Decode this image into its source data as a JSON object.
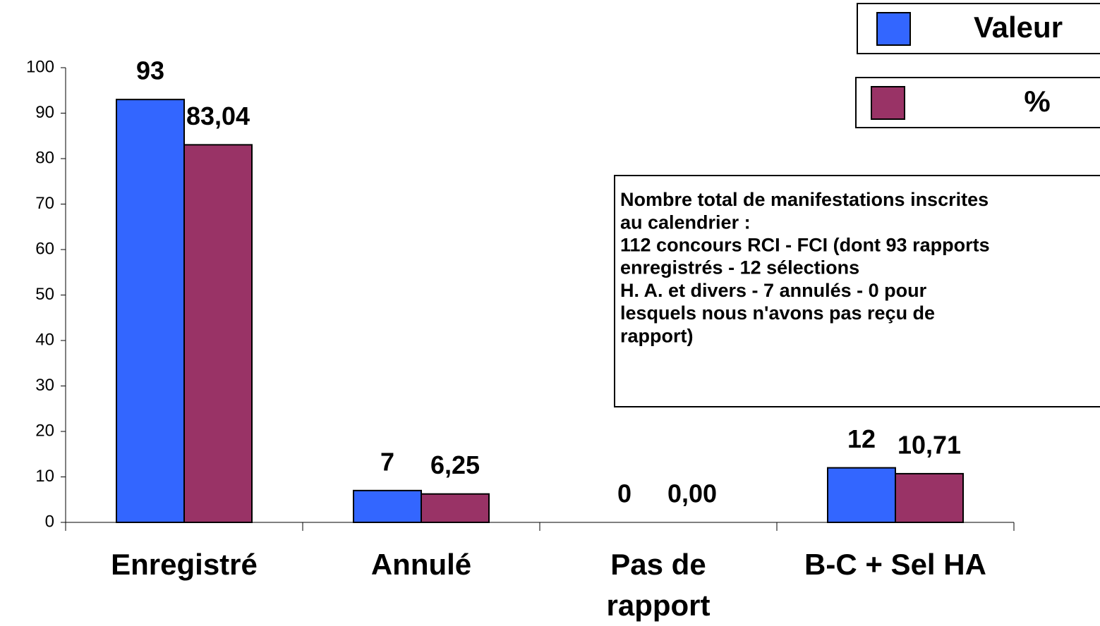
{
  "chart_data": {
    "type": "bar",
    "categories": [
      "Enregistré",
      "Annulé",
      "Pas de\nrapport",
      "B-C + Sel HA"
    ],
    "series": [
      {
        "name": "Valeur",
        "color": "#3366ff",
        "values": [
          93,
          7,
          0,
          12
        ]
      },
      {
        "name": "%",
        "color": "#993366",
        "values": [
          83.04,
          6.25,
          0,
          10.71
        ],
        "value_labels": [
          "83,04",
          "6,25",
          "0,00",
          "10,71"
        ]
      }
    ],
    "ylim": [
      0,
      100
    ],
    "yticks": [
      0,
      10,
      20,
      30,
      40,
      50,
      60,
      70,
      80,
      90,
      100
    ],
    "grid": false,
    "legend": "top-right",
    "annotation": [
      "Nombre total de manifestations inscrites",
      "au calendrier :",
      "112 concours RCI - FCI (dont  93 rapports",
      "enregistrés - 12 sélections",
      "H. A.  et divers - 7 annulés - 0 pour",
      "lesquels nous n'avons pas reçu de",
      "rapport)"
    ]
  }
}
